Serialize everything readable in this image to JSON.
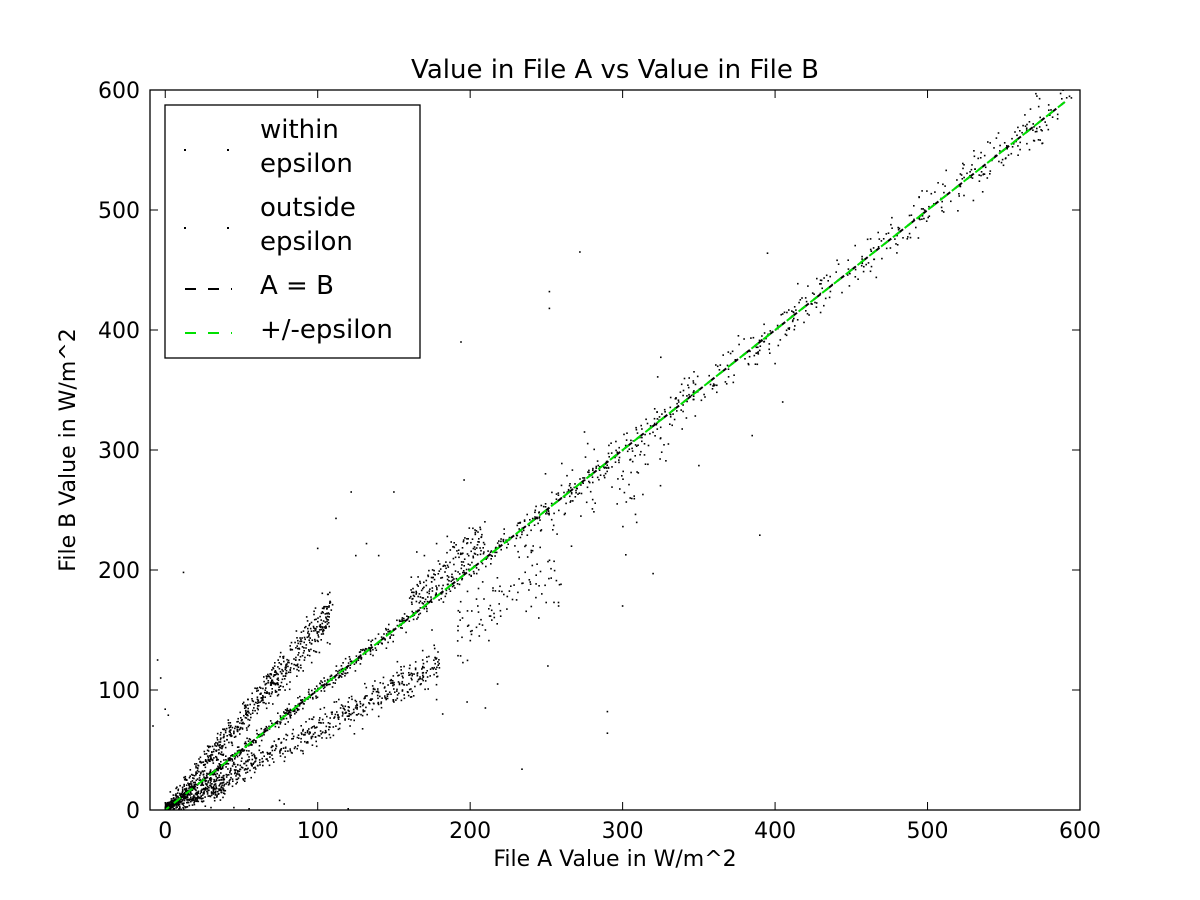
{
  "chart_data": {
    "type": "scatter",
    "title": "Value in File A vs Value in File B",
    "xlabel": "File A Value in W/m^2",
    "ylabel": "File B Value in W/m^2",
    "xlim": [
      -10,
      600
    ],
    "ylim": [
      0,
      600
    ],
    "x_ticks": [
      0,
      100,
      200,
      300,
      400,
      500,
      600
    ],
    "y_ticks": [
      0,
      100,
      200,
      300,
      400,
      500,
      600
    ],
    "x_tick_labels": [
      "0",
      "100",
      "200",
      "300",
      "400",
      "500",
      "600"
    ],
    "y_tick_labels": [
      "0",
      "100",
      "200",
      "300",
      "400",
      "500",
      "600"
    ],
    "grid": false,
    "legend_position": "upper-left",
    "legend": [
      {
        "label_lines": [
          "within",
          "epsilon"
        ],
        "marker": "point",
        "color": "#000000"
      },
      {
        "label_lines": [
          "outside",
          "epsilon"
        ],
        "marker": "point",
        "color": "#000000"
      },
      {
        "label_lines": [
          "A = B"
        ],
        "marker": "dashed-line",
        "color": "#000000"
      },
      {
        "label_lines": [
          "+/-epsilon"
        ],
        "marker": "dashed-line",
        "color": "#00e000"
      }
    ],
    "lines": [
      {
        "name": "A = B",
        "x": [
          0,
          590
        ],
        "y": [
          0,
          590
        ],
        "color": "#000000",
        "style": "dashed"
      },
      {
        "name": "+/-epsilon",
        "x": [
          0,
          590
        ],
        "y": [
          0,
          590
        ],
        "color": "#00e000",
        "style": "dashed"
      }
    ],
    "point_clusters": [
      {
        "shape": "band",
        "x_range": [
          0,
          595
        ],
        "slope": 1.0,
        "offset": 0,
        "spread": 2.5,
        "count": 1300,
        "note_density": "decreasing"
      },
      {
        "shape": "band",
        "x_range": [
          0,
          110
        ],
        "slope": 1.5,
        "offset": 0,
        "spread": 7,
        "count": 700
      },
      {
        "shape": "band",
        "x_range": [
          0,
          180
        ],
        "slope": 0.68,
        "offset": 0,
        "spread": 5,
        "count": 650
      },
      {
        "shape": "band",
        "x_range": [
          0,
          40
        ],
        "slope": 0.5,
        "offset": 0,
        "spread": 5,
        "count": 200
      },
      {
        "shape": "band",
        "x_range": [
          160,
          210
        ],
        "slope": 1.1,
        "offset": 0,
        "spread": 4,
        "count": 140
      },
      {
        "shape": "band",
        "x_range": [
          190,
          260
        ],
        "slope": 0.8,
        "offset": 0,
        "spread": 8,
        "count": 90
      },
      {
        "shape": "band",
        "x_range": [
          230,
          330
        ],
        "slope": 0.93,
        "offset": 0,
        "spread": 10,
        "count": 90
      }
    ],
    "outliers": [
      [
        -5,
        125
      ],
      [
        -3,
        110
      ],
      [
        0,
        84
      ],
      [
        2,
        79
      ],
      [
        12,
        198
      ],
      [
        20,
        0
      ],
      [
        -8,
        70
      ],
      [
        100,
        218
      ],
      [
        112,
        243
      ],
      [
        122,
        265
      ],
      [
        125,
        212
      ],
      [
        132,
        222
      ],
      [
        140,
        212
      ],
      [
        150,
        265
      ],
      [
        165,
        215
      ],
      [
        170,
        212
      ],
      [
        178,
        222
      ],
      [
        185,
        228
      ],
      [
        205,
        170
      ],
      [
        206,
        145
      ],
      [
        215,
        185
      ],
      [
        218,
        105
      ],
      [
        234,
        34
      ],
      [
        252,
        432
      ],
      [
        252,
        418
      ],
      [
        251,
        120
      ],
      [
        255,
        173
      ],
      [
        272,
        465
      ],
      [
        275,
        315
      ],
      [
        290,
        82
      ],
      [
        290,
        64
      ],
      [
        300,
        170
      ],
      [
        305,
        260
      ],
      [
        320,
        197
      ],
      [
        325,
        310
      ],
      [
        330,
        305
      ],
      [
        350,
        287
      ],
      [
        385,
        312
      ],
      [
        390,
        229
      ],
      [
        395,
        464
      ],
      [
        400,
        372
      ],
      [
        405,
        340
      ],
      [
        194,
        390
      ],
      [
        196,
        275
      ],
      [
        190,
        185
      ],
      [
        180,
        205
      ],
      [
        175,
        150
      ],
      [
        195,
        160
      ],
      [
        210,
        150
      ],
      [
        75,
        8
      ],
      [
        78,
        5
      ],
      [
        45,
        2
      ],
      [
        55,
        1
      ],
      [
        120,
        1
      ],
      [
        30,
        2
      ],
      [
        108,
        72
      ],
      [
        115,
        85
      ],
      [
        120,
        90
      ],
      [
        130,
        88
      ],
      [
        140,
        78
      ],
      [
        150,
        90
      ],
      [
        162,
        112
      ],
      [
        178,
        92
      ],
      [
        182,
        80
      ],
      [
        198,
        90
      ],
      [
        210,
        85
      ],
      [
        245,
        160
      ],
      [
        258,
        170
      ]
    ]
  }
}
